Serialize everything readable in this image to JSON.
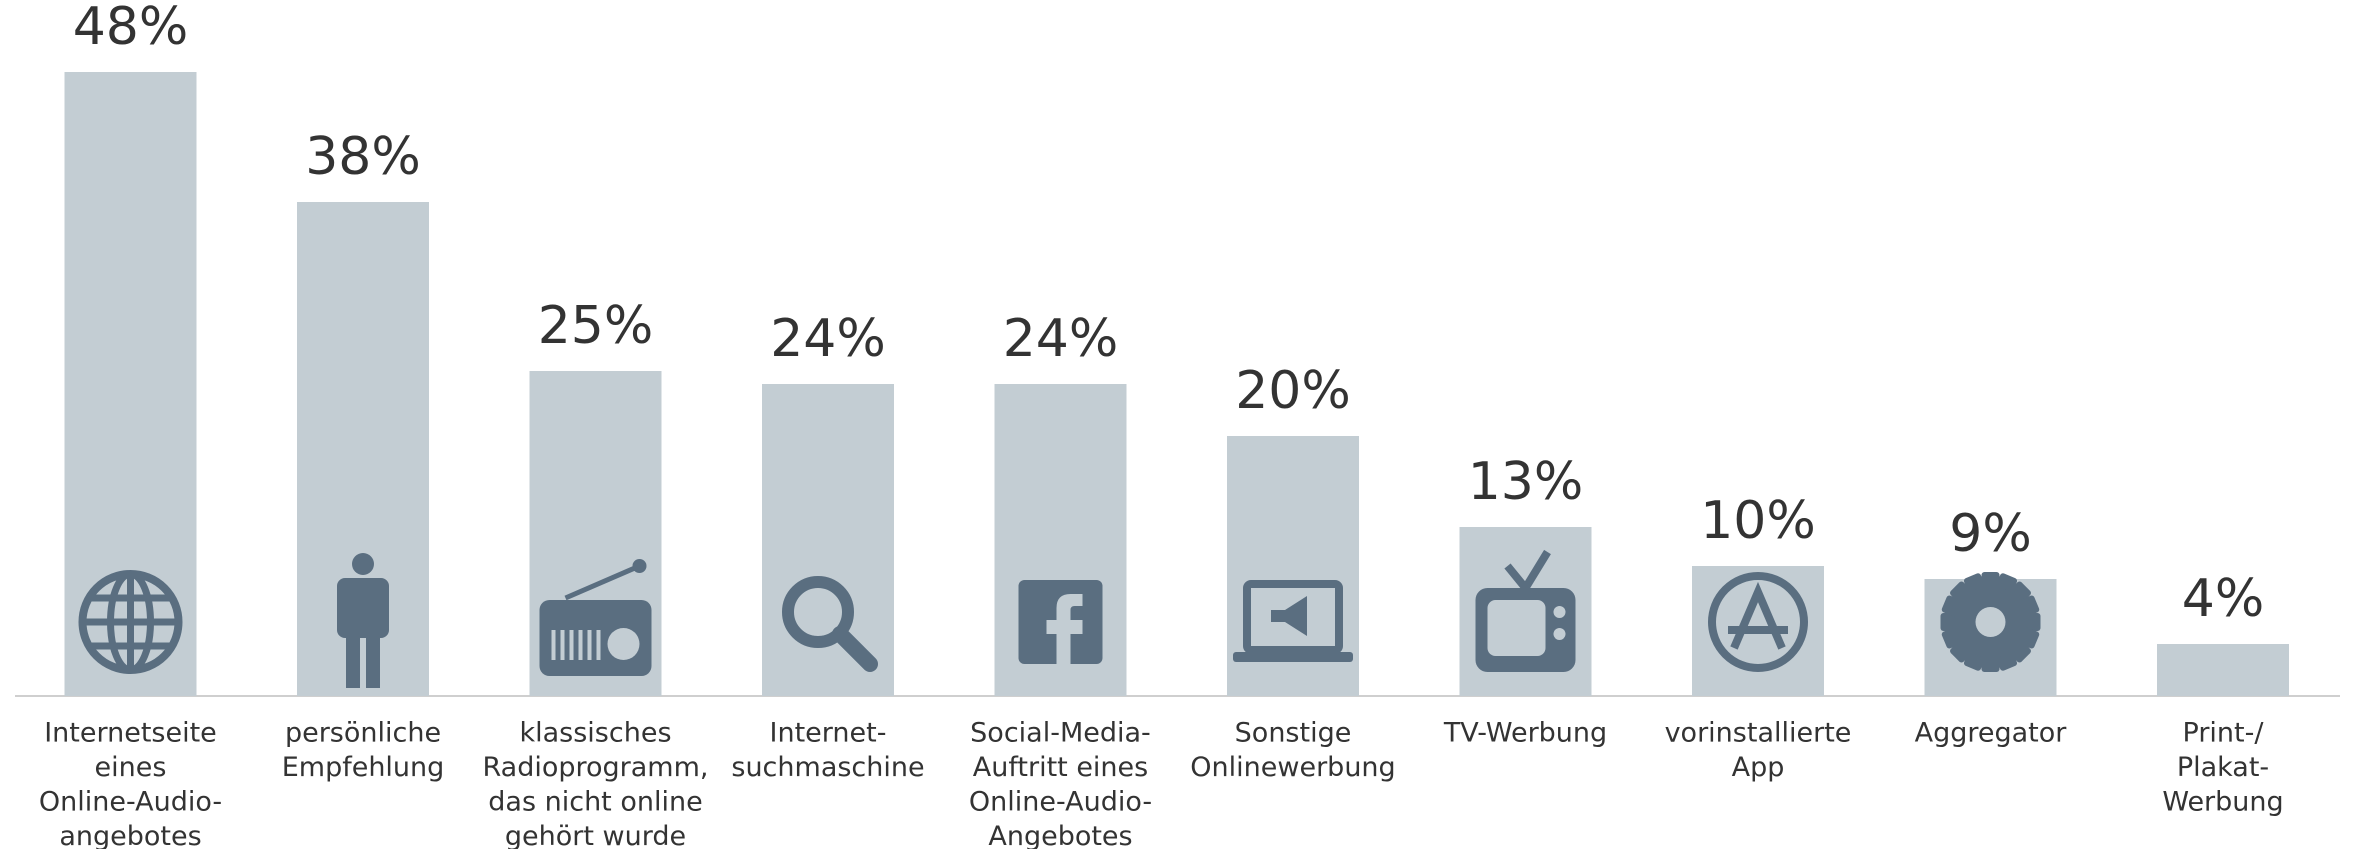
{
  "chart_data": {
    "type": "bar",
    "categories": [
      [
        "Internetseite",
        "eines",
        "Online-Audio-",
        "angebotes"
      ],
      [
        "persönliche",
        "Empfehlung"
      ],
      [
        "klassisches",
        "Radioprogramm,",
        "das nicht online",
        "gehört wurde"
      ],
      [
        "Internet-",
        "suchmaschine"
      ],
      [
        "Social-Media-",
        "Auftritt eines",
        "Online-Audio-",
        "Angebotes"
      ],
      [
        "Sonstige",
        "Onlinewerbung"
      ],
      [
        "TV-Werbung"
      ],
      [
        "vorinstallierte",
        "App"
      ],
      [
        "Aggregator"
      ],
      [
        "Print-/",
        "Plakat-",
        "Werbung"
      ]
    ],
    "values": [
      48,
      38,
      25,
      24,
      24,
      20,
      13,
      10,
      9,
      4
    ],
    "value_labels": [
      "48%",
      "38%",
      "25%",
      "24%",
      "24%",
      "20%",
      "13%",
      "10%",
      "9%",
      "4%"
    ],
    "color": "#c3cdd3"
  }
}
